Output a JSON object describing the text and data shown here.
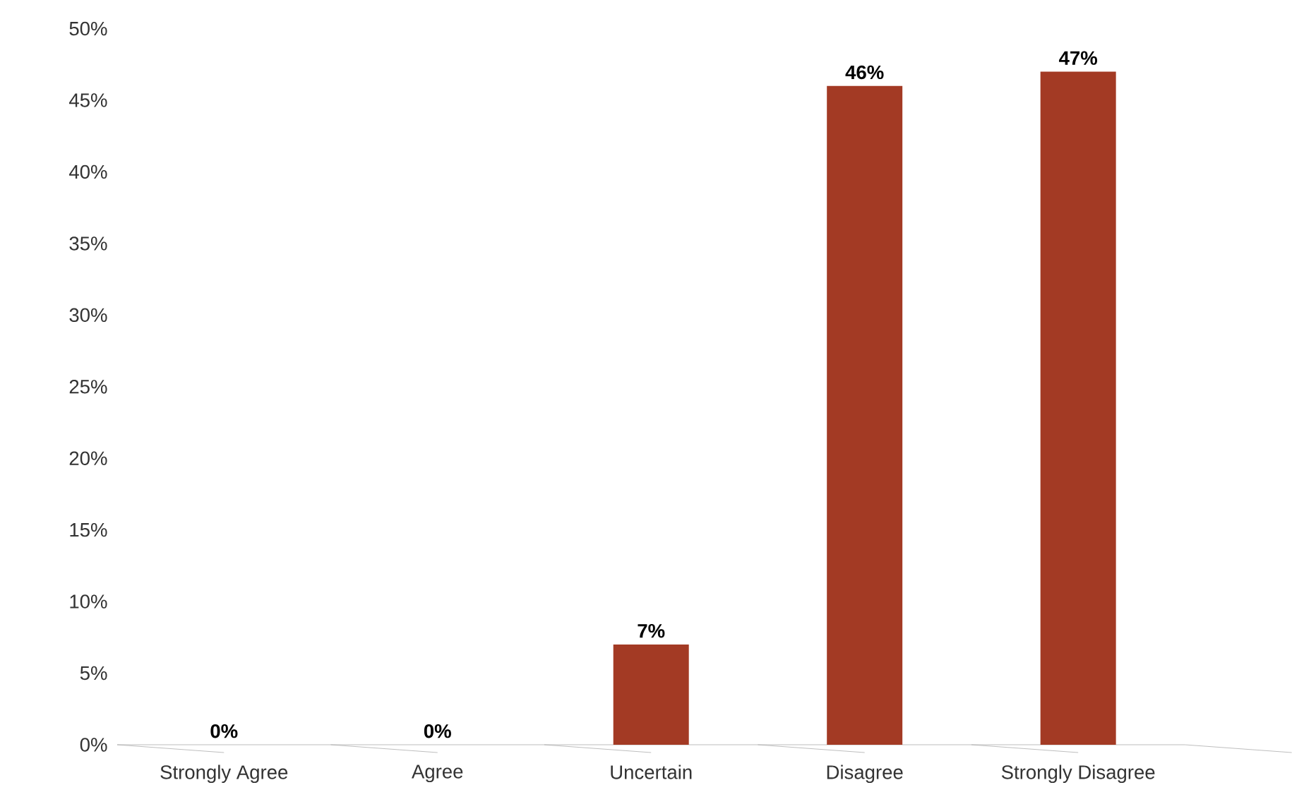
{
  "chart_data": {
    "type": "bar",
    "categories": [
      "Strongly Agree",
      "Agree",
      "Uncertain",
      "Disagree",
      "Strongly Disagree"
    ],
    "values": [
      0,
      0,
      7,
      46,
      47
    ],
    "color": "#a33a24",
    "value_labels": [
      "0%",
      "0%",
      "7%",
      "46%",
      "47%"
    ],
    "ylim": [
      0,
      50
    ],
    "yticks": [
      {
        "value": 0,
        "label": "0%"
      },
      {
        "value": 5,
        "label": "5%"
      },
      {
        "value": 10,
        "label": "10%"
      },
      {
        "value": 15,
        "label": "15%"
      },
      {
        "value": 20,
        "label": "20%"
      },
      {
        "value": 25,
        "label": "25%"
      },
      {
        "value": 30,
        "label": "30%"
      },
      {
        "value": 35,
        "label": "35%"
      },
      {
        "value": 40,
        "label": "40%"
      },
      {
        "value": 45,
        "label": "45%"
      },
      {
        "value": 50,
        "label": "50%"
      }
    ],
    "grid": false
  }
}
